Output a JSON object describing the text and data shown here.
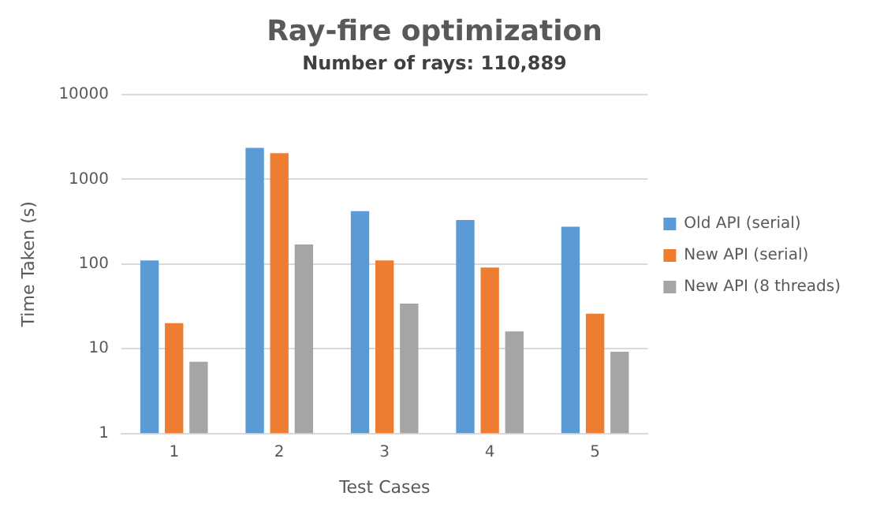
{
  "chart_data": {
    "type": "bar",
    "title": "Ray-fire optimization",
    "subtitle": "Number of rays: 110,889",
    "xlabel": "Test Cases",
    "ylabel": "Time Taken (s)",
    "categories": [
      "1",
      "2",
      "3",
      "4",
      "5"
    ],
    "series": [
      {
        "name": "Old API (serial)",
        "color": "#5b9bd5",
        "values": [
          110,
          2350,
          420,
          330,
          275
        ]
      },
      {
        "name": "New API (serial)",
        "color": "#ed7d31",
        "values": [
          20,
          2040,
          110,
          91,
          26
        ]
      },
      {
        "name": "New API (8 threads)",
        "color": "#a5a5a5",
        "values": [
          7,
          170,
          34,
          16,
          9.2
        ]
      }
    ],
    "log": true,
    "ylim": [
      1,
      10000
    ],
    "yticks": [
      1,
      10,
      100,
      1000,
      10000
    ],
    "grid": "y",
    "legend": "right"
  }
}
